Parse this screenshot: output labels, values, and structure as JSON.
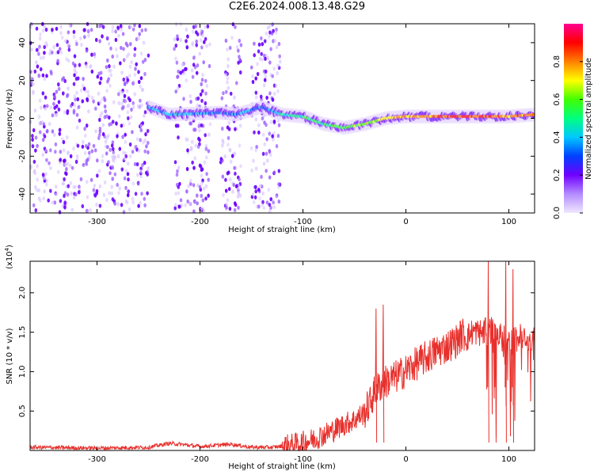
{
  "title": "C2E6.2024.008.13.48.G29",
  "colors": {
    "spectrogram_colormap": [
      "#f0e8ff",
      "#b48cff",
      "#7000ff",
      "#0040ff",
      "#00c8ff",
      "#00ff80",
      "#40ff00",
      "#ffff00",
      "#ff8000",
      "#ff0000",
      "#ff0090"
    ],
    "snr_line": "#e8302c",
    "axis": "#000000"
  },
  "chart_data": [
    {
      "type": "heatmap",
      "name": "spectrogram",
      "xlabel": "Height of straight line (km)",
      "ylabel": "Frequency (Hz)",
      "xlim": [
        -365,
        125
      ],
      "ylim": [
        -50,
        50
      ],
      "xticks": [
        -300,
        -200,
        -100,
        0,
        100
      ],
      "yticks": [
        -40,
        -20,
        0,
        20,
        40
      ],
      "colorbar": {
        "label": "Normalized spectral amplitude",
        "range": [
          0.0,
          1.0
        ],
        "ticks": [
          "0.0",
          "0.2",
          "0.4",
          "0.6",
          "0.8"
        ],
        "tick_values": [
          0.0,
          0.2,
          0.4,
          0.6,
          0.8
        ]
      },
      "ridge": [
        {
          "x": -250,
          "f": 6,
          "amp": 0.35
        },
        {
          "x": -230,
          "f": 2,
          "amp": 0.4
        },
        {
          "x": -180,
          "f": 3,
          "amp": 0.3
        },
        {
          "x": -165,
          "f": 2,
          "amp": 0.35
        },
        {
          "x": -140,
          "f": 6,
          "amp": 0.3
        },
        {
          "x": -120,
          "f": 2,
          "amp": 0.45
        },
        {
          "x": -100,
          "f": 1,
          "amp": 0.5
        },
        {
          "x": -80,
          "f": -3,
          "amp": 0.5
        },
        {
          "x": -60,
          "f": -5,
          "amp": 0.6
        },
        {
          "x": -40,
          "f": -3,
          "amp": 0.6
        },
        {
          "x": -20,
          "f": 0,
          "amp": 0.7
        },
        {
          "x": 0,
          "f": 1,
          "amp": 0.75
        },
        {
          "x": 40,
          "f": 1,
          "amp": 0.85
        },
        {
          "x": 80,
          "f": 1,
          "amp": 0.85
        },
        {
          "x": 100,
          "f": 1,
          "amp": 0.8
        },
        {
          "x": 125,
          "f": 2,
          "amp": 0.8
        }
      ],
      "noise_bands": [
        [
          -365,
          -250
        ],
        [
          -225,
          -190
        ],
        [
          -180,
          -160
        ],
        [
          -150,
          -122
        ]
      ]
    },
    {
      "type": "line",
      "name": "snr",
      "xlabel": "Height of straight line (km)",
      "ylabel": "SNR (10 * v/v)",
      "scale_label": "(x10",
      "scale_exponent": "4",
      "scale_suffix": ")",
      "xlim": [
        -365,
        125
      ],
      "ylim": [
        0,
        24000
      ],
      "xticks": [
        -300,
        -200,
        -100,
        0,
        100
      ],
      "yticks": [
        5000,
        10000,
        15000,
        20000
      ],
      "ytick_labels": [
        "0.5",
        "1.0",
        "1.5",
        "2.0"
      ],
      "series": [
        {
          "x": [
            -365,
            -300,
            -250,
            -230,
            -220,
            -200,
            -170,
            -150,
            -130,
            -110,
            -100,
            -90,
            -80,
            -70,
            -60,
            -50,
            -40,
            -35,
            -30,
            -25,
            -20,
            -10,
            0,
            10,
            20,
            30,
            40,
            50,
            55,
            60,
            65,
            70,
            75,
            80,
            85,
            90,
            95,
            100,
            105,
            110,
            115,
            125
          ],
          "y": [
            400,
            300,
            400,
            900,
            800,
            500,
            800,
            400,
            400,
            700,
            1000,
            1400,
            2000,
            2600,
            3300,
            3900,
            4800,
            6000,
            7500,
            8200,
            8700,
            9300,
            10100,
            11000,
            11800,
            12600,
            13200,
            14000,
            14800,
            14400,
            15100,
            15000,
            14900,
            15200,
            15300,
            14500,
            14200,
            14000,
            13800,
            14400,
            14300,
            13900
          ]
        }
      ],
      "peaks": [
        {
          "x": -29,
          "y": 18000
        },
        {
          "x": -22,
          "y": 18500
        },
        {
          "x": 80,
          "y": 24000
        },
        {
          "x": 87,
          "y": 16000
        },
        {
          "x": 97,
          "y": 24000
        },
        {
          "x": 104,
          "y": 23000
        }
      ]
    }
  ]
}
